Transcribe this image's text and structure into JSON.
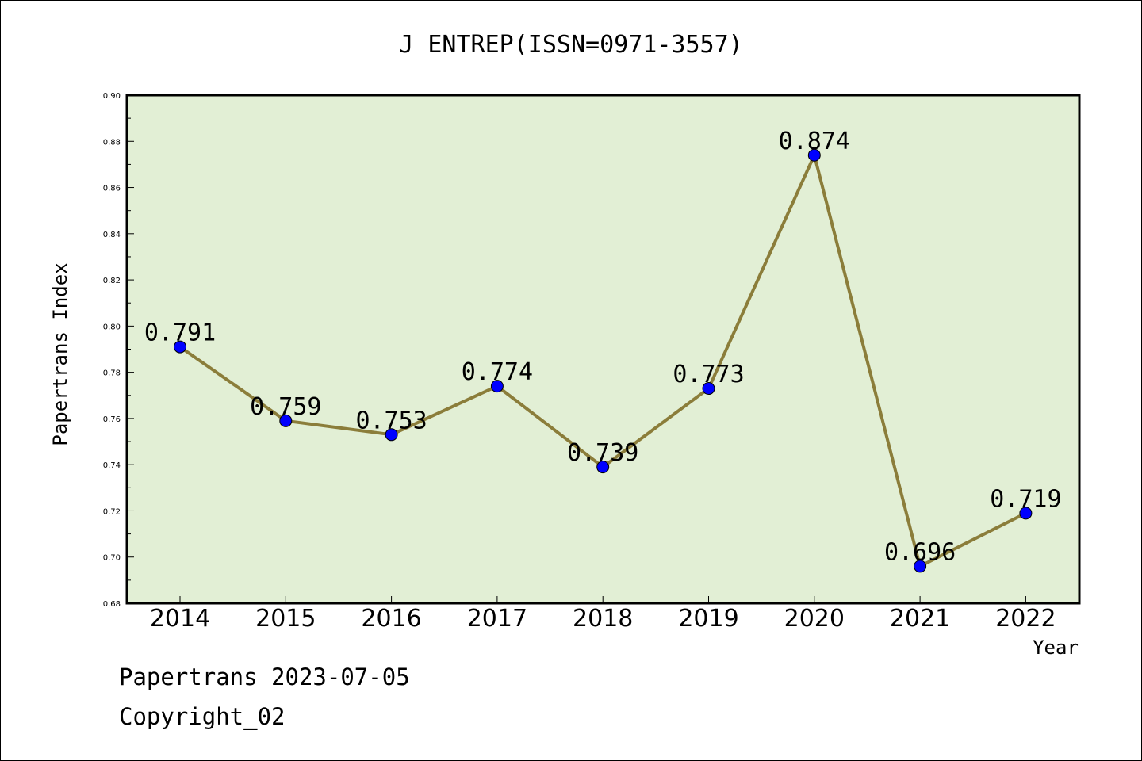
{
  "footer": {
    "line1": "Papertrans 2023-07-05",
    "line2": "Copyright_02"
  },
  "chart_data": {
    "type": "line",
    "title": "J ENTREP(ISSN=0971-3557)",
    "xlabel": "Year",
    "ylabel": "Papertrans Index",
    "categories": [
      "2014",
      "2015",
      "2016",
      "2017",
      "2018",
      "2019",
      "2020",
      "2021",
      "2022"
    ],
    "series": [
      {
        "values": [
          0.791,
          0.759,
          0.753,
          0.774,
          0.739,
          0.773,
          0.874,
          0.696,
          0.719
        ],
        "data_labels": [
          "0.791",
          "0.759",
          "0.753",
          "0.774",
          "0.739",
          "0.773",
          "0.874",
          "0.696",
          "0.719"
        ],
        "line_color": "#8b7d3a",
        "marker_color": "#0000ff"
      }
    ],
    "ylim": [
      0.68,
      0.9
    ],
    "yticks": [
      "0.68",
      "0.70",
      "0.72",
      "0.74",
      "0.76",
      "0.78",
      "0.80",
      "0.82",
      "0.84",
      "0.86",
      "0.88",
      "0.90"
    ],
    "plot_background": "#e2efd5",
    "grid": false,
    "legend": "none"
  }
}
